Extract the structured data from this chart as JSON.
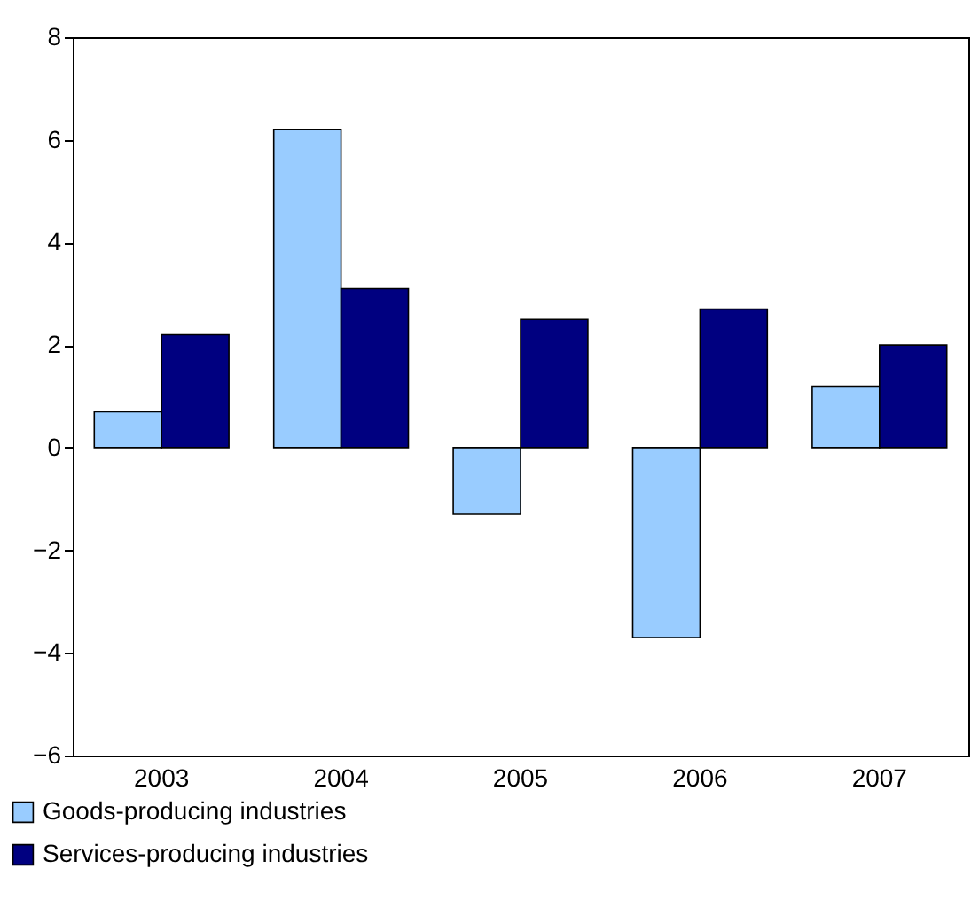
{
  "chart_data": {
    "type": "bar",
    "categories": [
      "2003",
      "2004",
      "2005",
      "2006",
      "2007"
    ],
    "series": [
      {
        "name": "Goods-producing industries",
        "color": "#99ccff",
        "values": [
          0.7,
          6.2,
          -1.3,
          -3.7,
          1.2
        ]
      },
      {
        "name": "Services-producing industries",
        "color": "#000080",
        "values": [
          2.2,
          3.1,
          2.5,
          2.7,
          2.0
        ]
      }
    ],
    "ylim": [
      -6,
      8
    ],
    "yticks": [
      -6,
      -4,
      -2,
      0,
      2,
      4,
      6,
      8
    ],
    "grid": false,
    "legend": "bottom"
  }
}
